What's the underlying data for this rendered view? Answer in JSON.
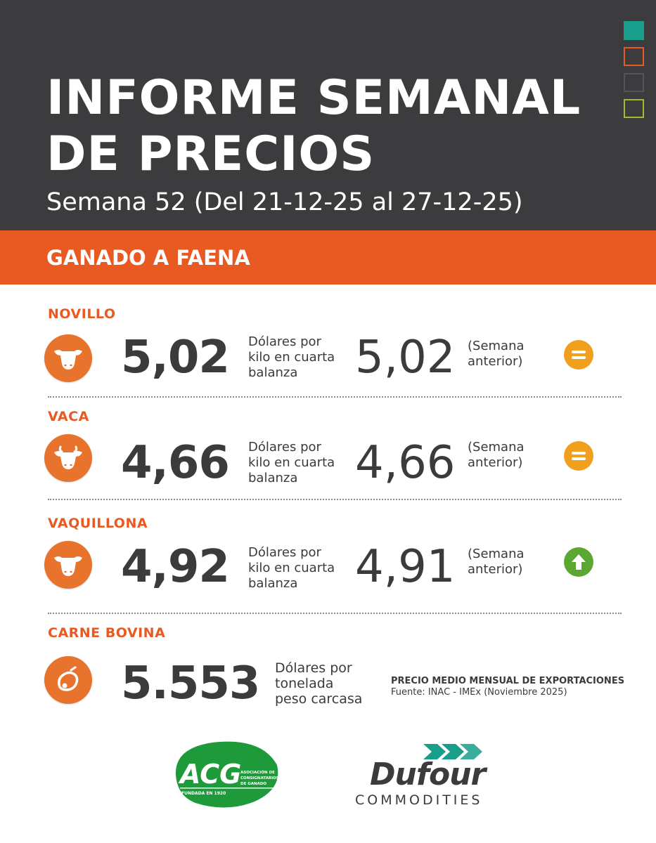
{
  "header": {
    "title_line1": "INFORME SEMANAL",
    "title_line2": "DE PRECIOS",
    "subtitle": "Semana 52 (Del 21-12-25 al 27-12-25)",
    "squares": [
      "#1a9e8c",
      "#e95a23",
      "#555557",
      "#9bbf2c"
    ]
  },
  "section": {
    "title": "GANADO A FAENA"
  },
  "rows": [
    {
      "category": "NOVILLO",
      "price": "5,02",
      "unit_l1": "Dólares por",
      "unit_l2": "kilo en cuarta",
      "unit_l3": "balanza",
      "prev_price": "5,02",
      "prev_l1": "(Semana",
      "prev_l2": "anterior)",
      "trend": "equal",
      "icon": "steer-head-icon"
    },
    {
      "category": "VACA",
      "price": "4,66",
      "unit_l1": "Dólares por",
      "unit_l2": "kilo en cuarta",
      "unit_l3": "balanza",
      "prev_price": "4,66",
      "prev_l1": "(Semana",
      "prev_l2": "anterior)",
      "trend": "equal",
      "icon": "cow-head-icon"
    },
    {
      "category": "VAQUILLONA",
      "price": "4,92",
      "unit_l1": "Dólares por",
      "unit_l2": "kilo en cuarta",
      "unit_l3": "balanza",
      "prev_price": "4,91",
      "prev_l1": "(Semana",
      "prev_l2": "anterior)",
      "trend": "up",
      "icon": "heifer-head-icon"
    }
  ],
  "beef": {
    "category": "CARNE BOVINA",
    "price": "5.553",
    "unit_l1": "Dólares por",
    "unit_l2": "tonelada",
    "unit_l3": "peso carcasa",
    "export_title": "PRECIO MEDIO MENSUAL DE EXPORTACIONES",
    "export_source": "Fuente: INAC -  IMEx (Noviembre 2025)",
    "icon": "meat-cut-icon"
  },
  "logos": {
    "acg_text": "ACG",
    "acg_sub1": "ASOCIACIÓN DE",
    "acg_sub2": "CONSIGNATARIOS",
    "acg_sub3": "DE GANADO",
    "acg_founded": "FUNDADA EN 1920",
    "dufour_name": "Dufour",
    "dufour_sub": "COMMODITIES"
  },
  "colors": {
    "orange": "#e95a23",
    "dark": "#3c3c3e",
    "trend_equal": "#f0a01e",
    "trend_up": "#5aa832",
    "acg_green": "#1f9a3a",
    "dufour_teal": "#1a9e8c"
  }
}
